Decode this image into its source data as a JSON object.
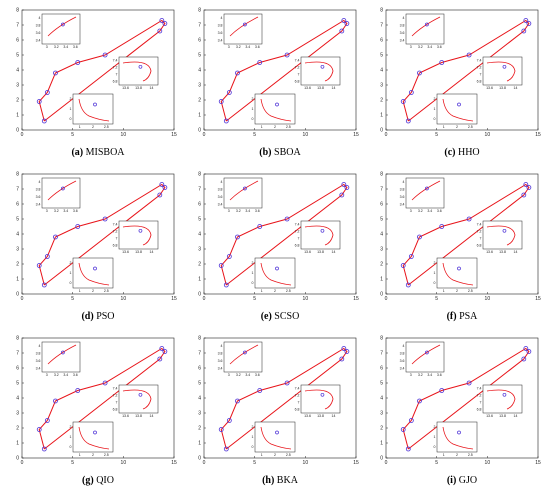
{
  "figure": {
    "panels": [
      {
        "letter": "(a)",
        "name": "MISBOA"
      },
      {
        "letter": "(b)",
        "name": "SBOA"
      },
      {
        "letter": "(c)",
        "name": "HHO"
      },
      {
        "letter": "(d)",
        "name": "PSO"
      },
      {
        "letter": "(e)",
        "name": "SCSO"
      },
      {
        "letter": "(f)",
        "name": "PSA"
      },
      {
        "letter": "(g)",
        "name": "QIO"
      },
      {
        "letter": "(h)",
        "name": "BKA"
      },
      {
        "letter": "(i)",
        "name": "GJO"
      }
    ]
  },
  "colors": {
    "path": "#e8141a",
    "point": "#4b2fd6",
    "axis": "#222222"
  },
  "chart_data": {
    "type": "line",
    "xlim": [
      0,
      15
    ],
    "ylim": [
      0,
      8
    ],
    "x_ticks": [
      0,
      5,
      10,
      15
    ],
    "y_ticks": [
      0,
      1,
      2,
      3,
      4,
      5,
      6,
      7,
      8
    ],
    "series": [
      {
        "points_x": [
          2.2,
          1.7,
          2.5,
          3.3,
          5.5,
          8.2,
          13.8,
          14.1,
          13.6
        ],
        "points_y": [
          0.6,
          1.9,
          2.5,
          3.8,
          4.5,
          5.0,
          7.3,
          7.1,
          6.6
        ],
        "path_x": [
          2.2,
          1.7,
          2.5,
          3.3,
          5.5,
          8.2,
          13.8,
          14.1,
          13.6,
          2.2
        ],
        "path_y": [
          0.6,
          1.9,
          2.5,
          3.8,
          4.5,
          5.0,
          7.3,
          7.1,
          6.6,
          0.6
        ]
      }
    ],
    "insets": [
      {
        "position": "top-left",
        "x_ticks": [
          "3",
          "3.2",
          "3.4",
          "3.6"
        ],
        "y_ticks": [
          "3.4",
          "3.6",
          "3.8",
          "4"
        ]
      },
      {
        "position": "right",
        "x_ticks": [
          "13.6",
          "13.8",
          "14"
        ],
        "y_ticks": [
          "6.8",
          "7",
          "7.2",
          "7.4"
        ]
      },
      {
        "position": "bottom",
        "x_ticks": [
          "1",
          "2",
          "2.5"
        ],
        "y_ticks": [
          "0",
          "1",
          "2"
        ]
      }
    ]
  }
}
